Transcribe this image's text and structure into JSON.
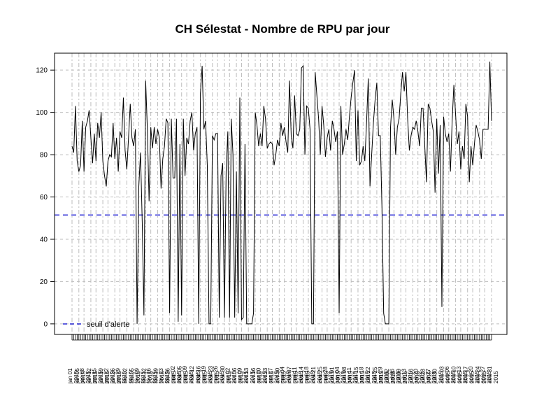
{
  "chart_data": {
    "type": "line",
    "title": "CH Sélestat  - Nombre de RPU par jour",
    "xlabel": "",
    "ylabel": "",
    "ylim": [
      -5,
      128
    ],
    "yticks": [
      0,
      20,
      40,
      60,
      80,
      100,
      120
    ],
    "grid": true,
    "legend_position": "bottom-left",
    "threshold": {
      "label": "seuil d'alerte",
      "value": 51.5,
      "color": "#0000CC"
    },
    "line_color": "#000000",
    "xtick_labels": [
      "jan 01",
      "jan 05",
      "jan 08",
      "jan 12",
      "jan 15",
      "jan 19",
      "jan 22",
      "jan 26",
      "jan 29",
      "fév 02",
      "fév 05",
      "fév 09",
      "fév 12",
      "fév 16",
      "fév 19",
      "fév 23",
      "fév 26",
      "mar 02",
      "mar 05",
      "mar 09",
      "mar 12",
      "mar 16",
      "mar 19",
      "mar 23",
      "mar 26",
      "mar 30",
      "avr 02",
      "avr 06",
      "avr 09",
      "avr 13",
      "avr 16",
      "avr 20",
      "avr 23",
      "avr 27",
      "avr 30",
      "mai 04",
      "mai 07",
      "mai 11",
      "mai 14",
      "mai 18",
      "mai 21",
      "mai 25",
      "mai 28",
      "juin 01",
      "juin 04",
      "juin 08",
      "juin 11",
      "juin 15",
      "juin 18",
      "juin 22",
      "juin 25",
      "juin 29",
      "juil 02",
      "juil 06",
      "juil 09",
      "juil 13",
      "juil 16",
      "juil 20",
      "juil 23",
      "juil 27",
      "juil 30",
      "aoû 03",
      "aoû 06",
      "aoû 10",
      "aoû 13",
      "aoû 17",
      "aoû 20",
      "aoû 24",
      "aoû 27",
      "aoû 31"
    ],
    "tick_year_label": "2015",
    "values": [
      84,
      81,
      103,
      77,
      72,
      75,
      96,
      72,
      93,
      96,
      101,
      88,
      76,
      90,
      77,
      95,
      88,
      100,
      77,
      70,
      65,
      77,
      80,
      79,
      95,
      78,
      88,
      72,
      91,
      88,
      107,
      82,
      73,
      88,
      104,
      88,
      84,
      92,
      0,
      65,
      81,
      48,
      4,
      115,
      92,
      58,
      93,
      83,
      93,
      85,
      92,
      88,
      64,
      78,
      84,
      97,
      95,
      5,
      97,
      69,
      69,
      97,
      1,
      85,
      4,
      97,
      70,
      88,
      85,
      96,
      100,
      82,
      90,
      93,
      0,
      109,
      122,
      92,
      96,
      75,
      0,
      0,
      89,
      87,
      90,
      90,
      3,
      70,
      76,
      3,
      72,
      91,
      3,
      97,
      80,
      3,
      72,
      5,
      107,
      2,
      3,
      85,
      0,
      0,
      0,
      0,
      5,
      100,
      94,
      84,
      90,
      84,
      103,
      97,
      83,
      85,
      86,
      85,
      75,
      80,
      87,
      84,
      95,
      89,
      93,
      86,
      81,
      115,
      89,
      83,
      108,
      90,
      89,
      92,
      121,
      122,
      80,
      103,
      102,
      92,
      0,
      0,
      119,
      108,
      97,
      80,
      103,
      94,
      79,
      88,
      92,
      82,
      96,
      92,
      86,
      91,
      5,
      103,
      80,
      85,
      92,
      87,
      98,
      107,
      114,
      120,
      77,
      101,
      75,
      77,
      84,
      77,
      95,
      116,
      65,
      80,
      95,
      106,
      114,
      89,
      89,
      55,
      5,
      0,
      0,
      0,
      93,
      106,
      97,
      80,
      93,
      97,
      109,
      119,
      110,
      119,
      97,
      82,
      89,
      93,
      92,
      96,
      91,
      84,
      102,
      102,
      84,
      67,
      104,
      102,
      96,
      91,
      62,
      97,
      71,
      94,
      8,
      98,
      90,
      86,
      90,
      72,
      96,
      113,
      99,
      85,
      91,
      73,
      84,
      78,
      104,
      98,
      67,
      84,
      75,
      85,
      94,
      91,
      87,
      78,
      92,
      92,
      92,
      92,
      124,
      96
    ]
  }
}
